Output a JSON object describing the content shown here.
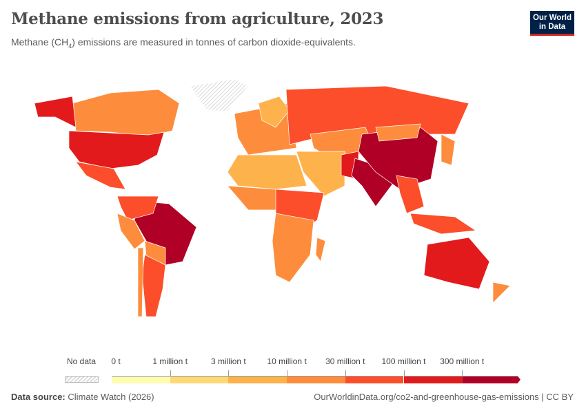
{
  "header": {
    "title": "Methane emissions from agriculture, 2023",
    "subtitle_pre": "Methane (CH",
    "subtitle_sub": "4",
    "subtitle_post": ") emissions are measured in tonnes of carbon dioxide-equivalents."
  },
  "logo": {
    "line1": "Our World",
    "line2": "in Data",
    "bg": "#002147",
    "accent": "#ce261e"
  },
  "legend": {
    "no_data_label": "No data",
    "labels": [
      "0 t",
      "1 million t",
      "3 million t",
      "10 million t",
      "30 million t",
      "100 million t",
      "300 million t"
    ],
    "colors": [
      "#fefdb0",
      "#fed976",
      "#feb24c",
      "#fd8d3c",
      "#fc4e2a",
      "#e31a1c",
      "#b10026"
    ]
  },
  "footer": {
    "source_label": "Data source:",
    "source_value": "Climate Watch (2026)",
    "url": "OurWorldinData.org/co2-and-greenhouse-gas-emissions | CC BY"
  },
  "chart_data": {
    "type": "choropleth",
    "scale": "binned",
    "bins_tonnes": [
      0,
      1000000,
      3000000,
      10000000,
      30000000,
      100000000,
      300000000
    ],
    "regions": [
      {
        "id": "canada",
        "bin": 3
      },
      {
        "id": "usa",
        "bin": 5
      },
      {
        "id": "alaska",
        "bin": 5
      },
      {
        "id": "mexico",
        "bin": 4
      },
      {
        "id": "greenland",
        "bin": null
      },
      {
        "id": "brazil",
        "bin": 6
      },
      {
        "id": "colombia-venezuela",
        "bin": 4
      },
      {
        "id": "peru",
        "bin": 3
      },
      {
        "id": "bolivia-paraguay",
        "bin": 3
      },
      {
        "id": "argentina",
        "bin": 4
      },
      {
        "id": "chile",
        "bin": 3
      },
      {
        "id": "europe",
        "bin": 3
      },
      {
        "id": "scandinavia",
        "bin": 2
      },
      {
        "id": "russia",
        "bin": 4
      },
      {
        "id": "central-asia",
        "bin": 3
      },
      {
        "id": "middle-east",
        "bin": 2
      },
      {
        "id": "pakistan",
        "bin": 5
      },
      {
        "id": "india",
        "bin": 6
      },
      {
        "id": "china",
        "bin": 6
      },
      {
        "id": "mongolia",
        "bin": 3
      },
      {
        "id": "southeast-asia",
        "bin": 4
      },
      {
        "id": "indonesia",
        "bin": 4
      },
      {
        "id": "japan",
        "bin": 3
      },
      {
        "id": "australia",
        "bin": 5
      },
      {
        "id": "new-zealand",
        "bin": 3
      },
      {
        "id": "north-africa",
        "bin": 2
      },
      {
        "id": "west-africa",
        "bin": 3
      },
      {
        "id": "east-africa",
        "bin": 4
      },
      {
        "id": "southern-africa",
        "bin": 3
      },
      {
        "id": "madagascar",
        "bin": 3
      }
    ]
  }
}
